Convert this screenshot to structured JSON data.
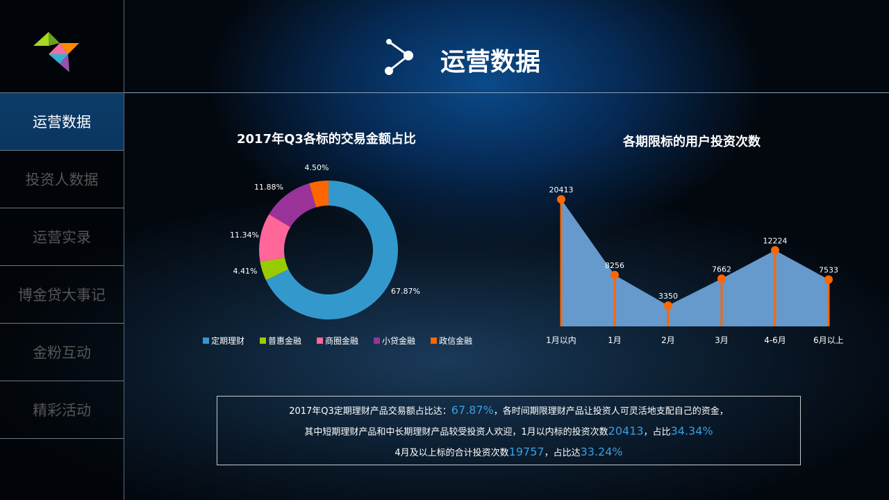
{
  "header": {
    "title": "运营数据"
  },
  "sidebar": {
    "items": [
      {
        "label": "运营数据",
        "active": true
      },
      {
        "label": "投资人数据"
      },
      {
        "label": "运营实录"
      },
      {
        "label": "博金贷大事记"
      },
      {
        "label": "金粉互动"
      },
      {
        "label": "精彩活动"
      }
    ]
  },
  "chart_data": [
    {
      "type": "pie",
      "title": "2017年Q3各标的交易金额占比",
      "labels": [
        "定期理财",
        "普惠金融",
        "商圈金融",
        "小贷金融",
        "政信金融"
      ],
      "values": [
        67.87,
        4.41,
        11.34,
        11.88,
        4.5
      ],
      "value_labels": [
        "67.87%",
        "4.41%",
        "11.34%",
        "11.88%",
        "4.50%"
      ],
      "colors": [
        "#3399cc",
        "#99cc00",
        "#ff6699",
        "#993399",
        "#ff6600"
      ],
      "legend": "bottom"
    },
    {
      "type": "area",
      "title": "各期限标的用户投资次数",
      "categories": [
        "1月以内",
        "1月",
        "2月",
        "3月",
        "4-6月",
        "6月以上"
      ],
      "values": [
        20413,
        8256,
        3350,
        7662,
        12224,
        7533
      ],
      "value_labels": [
        "20413",
        "8256",
        "3350",
        "7662",
        "12224",
        "7533"
      ],
      "ylim": [
        0,
        20413
      ],
      "fill": "#6699cc",
      "marker": "#ff6600"
    }
  ],
  "summary": {
    "l1a": "2017年Q3定期理财产品交易额占比达：",
    "l1b": "67.87%",
    "l1c": "，各时间期限理财产品让投资人可灵活地支配自己的资金，",
    "l2a": "其中短期理财产品和中长期理财产品较受投资人欢迎，1月以内标的投资次数",
    "l2b": "20413",
    "l2c": "，占比",
    "l2d": "34.34%",
    "l3a": "4月及以上标的合计投资次数",
    "l3b": "19757",
    "l3c": "，占比达",
    "l3d": "33.24%"
  }
}
